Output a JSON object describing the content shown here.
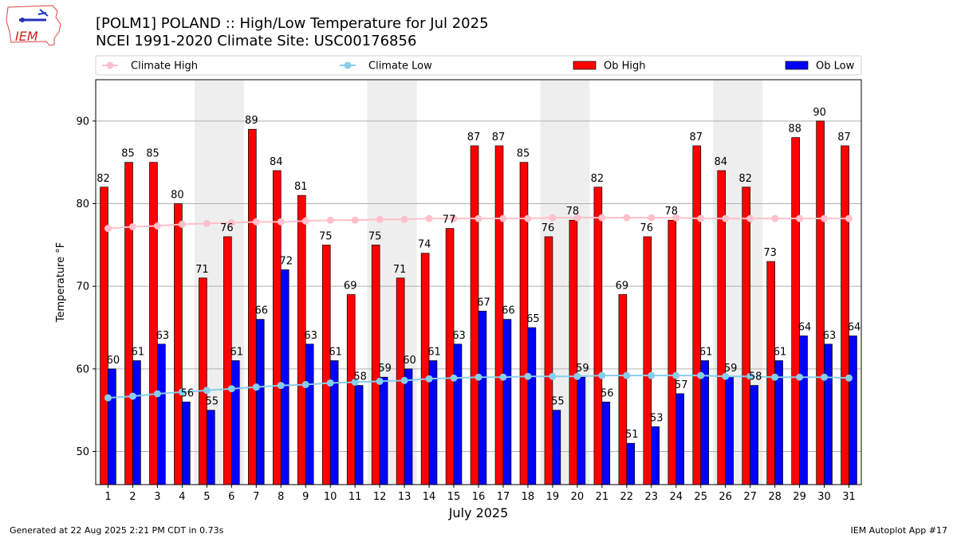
{
  "logo": {
    "text": "IEM"
  },
  "footer": {
    "left": "Generated at 22 Aug 2025 2:21 PM CDT in 0.73s",
    "right": "IEM Autoplot App #17"
  },
  "chart_data": {
    "type": "bar",
    "title": "[POLM1] POLAND :: High/Low Temperature for Jul 2025",
    "subtitle": "NCEI 1991-2020 Climate Site: USC00176856",
    "xlabel": "July 2025",
    "ylabel": "Temperature °F",
    "ylim": [
      46,
      95
    ],
    "yticks": [
      50,
      60,
      70,
      80,
      90
    ],
    "grid": true,
    "legend_position": "top",
    "weekend_days": [
      5,
      6,
      12,
      13,
      19,
      20,
      26,
      27
    ],
    "categories": [
      "1",
      "2",
      "3",
      "4",
      "5",
      "6",
      "7",
      "8",
      "9",
      "10",
      "11",
      "12",
      "13",
      "14",
      "15",
      "16",
      "17",
      "18",
      "19",
      "20",
      "21",
      "22",
      "23",
      "24",
      "25",
      "26",
      "27",
      "28",
      "29",
      "30",
      "31"
    ],
    "series": [
      {
        "name": "Ob High",
        "type": "bar",
        "color": "#ff0000",
        "values": [
          82,
          85,
          85,
          80,
          71,
          76,
          89,
          84,
          81,
          75,
          69,
          75,
          71,
          74,
          77,
          87,
          87,
          85,
          76,
          78,
          82,
          69,
          76,
          78,
          87,
          84,
          82,
          73,
          88,
          90,
          87
        ]
      },
      {
        "name": "Ob Low",
        "type": "bar",
        "color": "#0000ff",
        "values": [
          60,
          61,
          63,
          56,
          55,
          61,
          66,
          72,
          63,
          61,
          58,
          59,
          60,
          61,
          63,
          67,
          66,
          65,
          55,
          59,
          56,
          51,
          53,
          57,
          61,
          59,
          58,
          61,
          64,
          63,
          64
        ]
      },
      {
        "name": "Climate High",
        "type": "line",
        "color": "#ffc0cb",
        "values": [
          77.0,
          77.2,
          77.3,
          77.5,
          77.6,
          77.7,
          77.8,
          77.8,
          77.9,
          78.0,
          78.0,
          78.1,
          78.1,
          78.2,
          78.2,
          78.2,
          78.2,
          78.2,
          78.3,
          78.3,
          78.3,
          78.3,
          78.3,
          78.3,
          78.2,
          78.2,
          78.2,
          78.2,
          78.2,
          78.2,
          78.2
        ]
      },
      {
        "name": "Climate Low",
        "type": "line",
        "color": "#87ceeb",
        "values": [
          56.5,
          56.7,
          57.0,
          57.2,
          57.4,
          57.6,
          57.8,
          58.0,
          58.1,
          58.3,
          58.4,
          58.5,
          58.6,
          58.8,
          58.9,
          59.0,
          59.0,
          59.1,
          59.1,
          59.1,
          59.2,
          59.2,
          59.2,
          59.2,
          59.2,
          59.1,
          59.1,
          59.0,
          59.0,
          59.0,
          58.9
        ]
      }
    ],
    "legend_order": [
      "Climate High",
      "Climate Low",
      "Ob High",
      "Ob Low"
    ]
  }
}
